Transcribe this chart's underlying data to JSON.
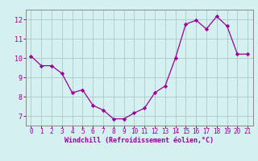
{
  "x": [
    0,
    1,
    2,
    3,
    4,
    5,
    6,
    7,
    8,
    9,
    10,
    11,
    12,
    13,
    14,
    15,
    16,
    17,
    18,
    19,
    20,
    21
  ],
  "y": [
    10.1,
    9.6,
    9.6,
    9.2,
    8.2,
    8.35,
    7.55,
    7.3,
    6.85,
    6.85,
    7.15,
    7.4,
    8.2,
    8.55,
    10.0,
    11.75,
    11.95,
    11.5,
    12.15,
    11.65,
    10.2,
    10.2
  ],
  "line_color": "#990099",
  "marker": "D",
  "marker_size": 2.2,
  "bg_color": "#d4f0f0",
  "grid_color": "#b0c8c8",
  "xlabel": "Windchill (Refroidissement éolien,°C)",
  "xlabel_color": "#990099",
  "tick_color": "#990099",
  "ylim": [
    6.5,
    12.5
  ],
  "xlim": [
    -0.5,
    21.5
  ],
  "yticks": [
    7,
    8,
    9,
    10,
    11,
    12
  ],
  "xticks": [
    0,
    1,
    2,
    3,
    4,
    5,
    6,
    7,
    8,
    9,
    10,
    11,
    12,
    13,
    14,
    15,
    16,
    17,
    18,
    19,
    20,
    21
  ],
  "spine_color": "#888888",
  "tick_fontsize": 5.5,
  "xlabel_fontsize": 6.0,
  "ylabel_fontsize": 6.0,
  "linewidth": 0.9
}
